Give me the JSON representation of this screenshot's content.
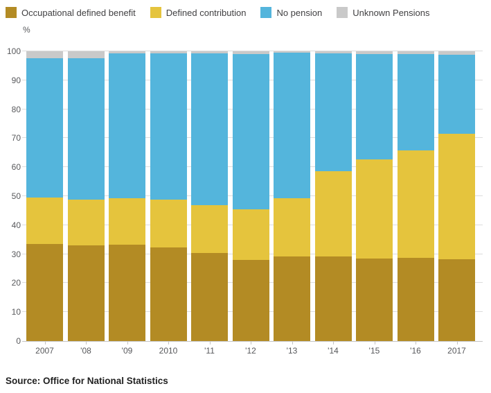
{
  "legend": {
    "items": [
      {
        "label": "Occupational defined benefit",
        "color": "#b38b24"
      },
      {
        "label": "Defined contribution",
        "color": "#e5c43d"
      },
      {
        "label": "No pension",
        "color": "#54b5dc"
      },
      {
        "label": "Unknown Pensions",
        "color": "#c9c9c9"
      }
    ]
  },
  "source": "Source: Office for National Statistics",
  "chart_data": {
    "type": "bar",
    "stacked": true,
    "stacked_total": 100,
    "title": "",
    "ylabel": "%",
    "xlabel": "",
    "ylim": [
      0,
      100
    ],
    "yticks": [
      0,
      10,
      20,
      30,
      40,
      50,
      60,
      70,
      80,
      90,
      100
    ],
    "grid": true,
    "legend_position": "top",
    "categories": [
      "2007",
      "'08",
      "'09",
      "2010",
      "'11",
      "'12",
      "'13",
      "'14",
      "'15",
      "'16",
      "2017"
    ],
    "series": [
      {
        "name": "Occupational defined benefit",
        "color": "#b38b24",
        "values": [
          33.5,
          33.0,
          33.2,
          32.2,
          30.5,
          28.0,
          29.3,
          29.1,
          28.5,
          28.7,
          28.3
        ]
      },
      {
        "name": "Defined contribution",
        "color": "#e5c43d",
        "values": [
          16.0,
          15.8,
          16.0,
          16.5,
          16.3,
          17.4,
          20.0,
          29.6,
          34.1,
          37.0,
          43.2
        ]
      },
      {
        "name": "No pension",
        "color": "#54b5dc",
        "values": [
          48.1,
          48.9,
          50.1,
          50.5,
          52.5,
          53.6,
          50.2,
          40.5,
          36.4,
          33.4,
          27.2
        ]
      },
      {
        "name": "Unknown Pensions",
        "color": "#c9c9c9",
        "values": [
          2.4,
          2.3,
          0.7,
          0.8,
          0.7,
          1.0,
          0.5,
          0.8,
          1.0,
          0.9,
          1.3
        ]
      }
    ]
  }
}
